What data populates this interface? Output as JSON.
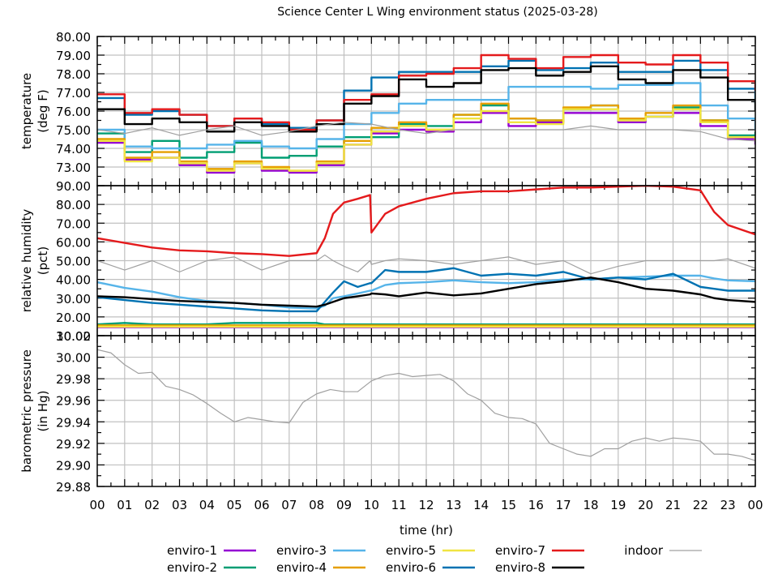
{
  "chart_data": [
    {
      "type": "line",
      "title": "Science Center L Wing environment status (2025-03-28)",
      "xlabel": "time (hr)",
      "ylabel": [
        "temperature",
        "(deg F)"
      ],
      "xlim": [
        0,
        24
      ],
      "ylim": [
        72,
        80
      ],
      "grid": true,
      "x_tick_labels": [
        "00",
        "01",
        "02",
        "03",
        "04",
        "05",
        "06",
        "07",
        "08",
        "09",
        "10",
        "11",
        "12",
        "13",
        "14",
        "15",
        "16",
        "17",
        "18",
        "19",
        "20",
        "21",
        "22",
        "23",
        "00"
      ],
      "y_tick_labels": [
        "73.00",
        "74.00",
        "75.00",
        "76.00",
        "77.00",
        "78.00",
        "79.00",
        "80.00"
      ],
      "y_tick_values": [
        73,
        74,
        75,
        76,
        77,
        78,
        79,
        80
      ],
      "x": [
        0,
        1,
        2,
        3,
        4,
        5,
        6,
        7,
        8,
        9,
        10,
        11,
        12,
        13,
        14,
        15,
        16,
        17,
        18,
        19,
        20,
        21,
        22,
        23,
        24
      ],
      "series": [
        {
          "name": "enviro-1",
          "color": "#9400d3",
          "values": [
            74.3,
            73.4,
            73.5,
            73.1,
            72.7,
            73.2,
            72.8,
            72.7,
            73.1,
            74.2,
            74.8,
            75.0,
            74.9,
            75.4,
            75.9,
            75.2,
            75.4,
            75.9,
            75.9,
            75.4,
            75.7,
            75.9,
            75.2,
            74.5,
            74.2
          ]
        },
        {
          "name": "enviro-2",
          "color": "#009e73",
          "values": [
            74.8,
            73.8,
            74.4,
            73.5,
            73.8,
            74.3,
            73.5,
            73.6,
            74.1,
            74.6,
            74.6,
            75.3,
            75.2,
            75.8,
            76.3,
            75.6,
            75.5,
            76.1,
            76.3,
            75.6,
            75.7,
            76.2,
            75.5,
            74.7,
            74.9
          ]
        },
        {
          "name": "enviro-3",
          "color": "#56b4e9",
          "values": [
            75.0,
            74.1,
            74.0,
            74.0,
            74.2,
            74.4,
            74.1,
            74.0,
            74.5,
            75.3,
            75.9,
            76.4,
            76.6,
            76.6,
            76.6,
            77.3,
            77.3,
            77.3,
            77.2,
            77.4,
            77.4,
            77.5,
            76.3,
            75.6,
            75.0
          ]
        },
        {
          "name": "enviro-4",
          "color": "#e69f00",
          "values": [
            74.5,
            73.5,
            73.8,
            73.3,
            72.9,
            73.3,
            73.0,
            72.8,
            73.3,
            74.4,
            75.1,
            75.4,
            75.0,
            75.8,
            76.4,
            75.6,
            75.5,
            76.2,
            76.3,
            75.6,
            75.9,
            76.3,
            75.5,
            74.6,
            74.4
          ]
        },
        {
          "name": "enviro-5",
          "color": "#f0e442",
          "values": [
            74.4,
            73.3,
            73.5,
            73.2,
            72.8,
            73.2,
            72.9,
            72.8,
            73.2,
            74.2,
            74.9,
            75.2,
            75.0,
            75.6,
            76.0,
            75.4,
            75.3,
            76.1,
            76.1,
            75.5,
            75.7,
            76.1,
            75.4,
            74.6,
            74.5
          ]
        },
        {
          "name": "enviro-6",
          "color": "#0072b2",
          "values": [
            76.7,
            75.8,
            76.0,
            75.8,
            75.2,
            75.6,
            75.3,
            75.1,
            75.5,
            77.1,
            77.8,
            78.1,
            78.1,
            78.1,
            78.4,
            78.7,
            78.2,
            78.3,
            78.6,
            78.1,
            78.1,
            78.7,
            78.2,
            77.2,
            76.4
          ]
        },
        {
          "name": "enviro-7",
          "color": "#e41a1c",
          "values": [
            76.9,
            75.9,
            76.1,
            75.8,
            75.2,
            75.6,
            75.4,
            75.0,
            75.5,
            76.6,
            76.9,
            77.9,
            78.0,
            78.3,
            79.0,
            78.8,
            78.3,
            78.9,
            79.0,
            78.6,
            78.5,
            79.0,
            78.6,
            77.6,
            77.1
          ]
        },
        {
          "name": "enviro-8",
          "color": "#000000",
          "values": [
            76.1,
            75.3,
            75.6,
            75.4,
            74.9,
            75.4,
            75.2,
            74.9,
            75.3,
            76.4,
            76.8,
            77.7,
            77.3,
            77.5,
            78.2,
            78.3,
            77.9,
            78.1,
            78.4,
            77.7,
            77.5,
            78.2,
            77.8,
            76.6,
            76.0
          ]
        },
        {
          "name": "indoor",
          "color": "#a0a0a0",
          "values": [
            75.0,
            74.8,
            75.1,
            74.7,
            75.0,
            75.2,
            74.7,
            74.9,
            75.2,
            75.4,
            75.3,
            75.0,
            74.8,
            75.0,
            75.0,
            75.0,
            75.0,
            75.0,
            75.2,
            75.0,
            75.0,
            75.0,
            74.9,
            74.5,
            74.4
          ]
        }
      ]
    },
    {
      "type": "line",
      "ylabel": [
        "relative humidity",
        "(pct)"
      ],
      "xlim": [
        0,
        24
      ],
      "ylim": [
        10,
        90
      ],
      "grid": true,
      "y_tick_labels": [
        "10.00",
        "20.00",
        "30.00",
        "40.00",
        "50.00",
        "60.00",
        "70.00",
        "80.00",
        "90.00"
      ],
      "y_tick_values": [
        10,
        20,
        30,
        40,
        50,
        60,
        70,
        80,
        90
      ],
      "x": [
        0,
        1,
        2,
        3,
        4,
        5,
        6,
        7,
        8,
        8.3,
        8.6,
        9,
        9.5,
        9.95,
        10,
        10.5,
        11,
        12,
        13,
        14,
        15,
        16,
        17,
        18,
        19,
        20,
        21,
        22,
        22.5,
        23,
        24
      ],
      "series": [
        {
          "name": "enviro-1",
          "color": "#9400d3",
          "values": [
            14.5,
            14.5,
            14.5,
            14.5,
            14.5,
            14.5,
            14.5,
            14.5,
            14.5,
            14.5,
            14.5,
            14.5,
            14.5,
            14.5,
            14.5,
            14.5,
            14.5,
            14.5,
            14.5,
            14.5,
            14.5,
            14.5,
            14.5,
            14.5,
            14.5,
            14.5,
            14.5,
            14.5,
            14.5,
            14.5,
            14.5
          ]
        },
        {
          "name": "enviro-2",
          "color": "#009e73",
          "values": [
            16.0,
            16.8,
            16.0,
            16.0,
            16.0,
            16.8,
            16.8,
            16.8,
            16.8,
            16.0,
            16.0,
            16.0,
            16.0,
            16.0,
            16.0,
            16.0,
            16.0,
            16.0,
            16.0,
            16.0,
            16.0,
            16.0,
            16.0,
            16.0,
            16.0,
            16.0,
            16.0,
            16.0,
            16.0,
            16.0,
            16.0
          ]
        },
        {
          "name": "enviro-3",
          "color": "#56b4e9",
          "values": [
            38.5,
            35.5,
            33.5,
            30.5,
            28.5,
            27.5,
            26.5,
            25.0,
            24.5,
            26.0,
            30.0,
            31.0,
            32.5,
            34.0,
            34.0,
            37.0,
            38.0,
            38.5,
            39.5,
            38.5,
            38.0,
            38.5,
            40.0,
            40.0,
            41.0,
            41.5,
            42.0,
            42.0,
            40.5,
            39.5,
            39.0
          ]
        },
        {
          "name": "enviro-4",
          "color": "#e69f00",
          "values": [
            15.5,
            15.5,
            15.5,
            15.5,
            15.5,
            15.5,
            15.5,
            15.5,
            15.5,
            15.5,
            15.5,
            15.5,
            15.5,
            15.5,
            15.5,
            15.5,
            15.5,
            15.5,
            15.5,
            15.5,
            15.5,
            15.5,
            15.5,
            15.5,
            15.5,
            15.5,
            15.5,
            15.5,
            15.5,
            15.5,
            15.5
          ]
        },
        {
          "name": "enviro-5",
          "color": "#f0e442",
          "values": [
            14.8,
            14.8,
            14.8,
            14.8,
            14.8,
            14.8,
            14.8,
            14.8,
            14.8,
            14.8,
            14.8,
            14.8,
            14.8,
            14.8,
            14.8,
            14.8,
            14.8,
            14.8,
            14.8,
            14.8,
            14.8,
            14.8,
            14.8,
            14.8,
            14.8,
            14.8,
            14.8,
            14.8,
            14.8,
            14.8,
            14.8
          ]
        },
        {
          "name": "enviro-6",
          "color": "#0072b2",
          "values": [
            30.5,
            29.0,
            27.5,
            26.5,
            25.5,
            24.5,
            23.5,
            23.0,
            23.0,
            28.0,
            33.0,
            39.0,
            36.0,
            38.0,
            38.0,
            45.0,
            44.0,
            44.0,
            46.0,
            42.0,
            43.0,
            42.0,
            44.0,
            40.0,
            41.0,
            40.0,
            43.0,
            36.0,
            35.0,
            34.0,
            34.0
          ]
        },
        {
          "name": "enviro-7",
          "color": "#e41a1c",
          "values": [
            62.0,
            59.5,
            57.0,
            55.5,
            55.0,
            54.0,
            53.5,
            52.5,
            54.0,
            62.0,
            75.0,
            81.0,
            83.0,
            85.0,
            65.0,
            75.0,
            79.0,
            83.0,
            86.0,
            87.0,
            87.0,
            88.0,
            89.0,
            89.0,
            89.5,
            90.0,
            89.5,
            87.5,
            76.0,
            69.0,
            64.0
          ]
        },
        {
          "name": "enviro-8",
          "color": "#000000",
          "values": [
            31.0,
            30.5,
            29.5,
            28.5,
            28.0,
            27.5,
            26.5,
            26.0,
            25.5,
            26.5,
            28.0,
            30.0,
            31.0,
            32.0,
            32.5,
            32.0,
            31.0,
            33.0,
            31.5,
            32.5,
            35.0,
            37.5,
            39.0,
            41.0,
            38.5,
            35.0,
            34.0,
            32.0,
            30.0,
            29.0,
            28.0
          ]
        },
        {
          "name": "indoor",
          "color": "#a0a0a0",
          "values": [
            50.0,
            45.0,
            50.0,
            44.0,
            50.0,
            52.0,
            45.0,
            50.0,
            50.0,
            53.0,
            50.0,
            47.0,
            44.0,
            50.0,
            48.0,
            50.0,
            51.0,
            50.0,
            48.0,
            50.0,
            52.0,
            48.0,
            50.0,
            43.0,
            47.0,
            50.0,
            50.0,
            50.0,
            50.0,
            51.0,
            46.0
          ]
        }
      ]
    },
    {
      "type": "line",
      "xlabel": "time (hr)",
      "ylabel": [
        "barometric pressure",
        "(in Hg)"
      ],
      "xlim": [
        0,
        24
      ],
      "ylim": [
        29.88,
        30.02
      ],
      "grid": true,
      "y_tick_labels": [
        "29.88",
        "29.90",
        "29.92",
        "29.94",
        "29.96",
        "29.98",
        "30.00",
        "30.02"
      ],
      "y_tick_values": [
        29.88,
        29.9,
        29.92,
        29.94,
        29.96,
        29.98,
        30.0,
        30.02
      ],
      "x": [
        0,
        0.5,
        1,
        1.5,
        2,
        2.5,
        3,
        3.5,
        4,
        4.5,
        5,
        5.5,
        6,
        6.5,
        7,
        7.5,
        8,
        8.5,
        9,
        9.5,
        10,
        10.5,
        11,
        11.5,
        12,
        12.5,
        13,
        13.5,
        14,
        14.5,
        15,
        15.5,
        16,
        16.5,
        17,
        17.5,
        18,
        18.5,
        19,
        19.5,
        20,
        20.5,
        21,
        21.5,
        22,
        22.5,
        23,
        23.5,
        24
      ],
      "series": [
        {
          "name": "indoor",
          "color": "#a0a0a0",
          "values": [
            30.007,
            30.004,
            29.993,
            29.985,
            29.986,
            29.973,
            29.97,
            29.965,
            29.957,
            29.948,
            29.94,
            29.944,
            29.942,
            29.94,
            29.939,
            29.958,
            29.966,
            29.97,
            29.968,
            29.968,
            29.978,
            29.983,
            29.985,
            29.982,
            29.983,
            29.984,
            29.978,
            29.966,
            29.96,
            29.948,
            29.944,
            29.943,
            29.938,
            29.92,
            29.915,
            29.91,
            29.908,
            29.915,
            29.915,
            29.922,
            29.925,
            29.922,
            29.925,
            29.924,
            29.922,
            29.91,
            29.91,
            29.908,
            29.904
          ]
        }
      ]
    }
  ],
  "legend": {
    "placement": "bottom",
    "items": [
      {
        "label": "enviro-1",
        "color": "#9400d3"
      },
      {
        "label": "enviro-2",
        "color": "#009e73"
      },
      {
        "label": "enviro-3",
        "color": "#56b4e9"
      },
      {
        "label": "enviro-4",
        "color": "#e69f00"
      },
      {
        "label": "enviro-5",
        "color": "#f0e442"
      },
      {
        "label": "enviro-6",
        "color": "#0072b2"
      },
      {
        "label": "enviro-7",
        "color": "#e41a1c"
      },
      {
        "label": "enviro-8",
        "color": "#000000"
      },
      {
        "label": "indoor",
        "color": "#a0a0a0"
      }
    ]
  }
}
